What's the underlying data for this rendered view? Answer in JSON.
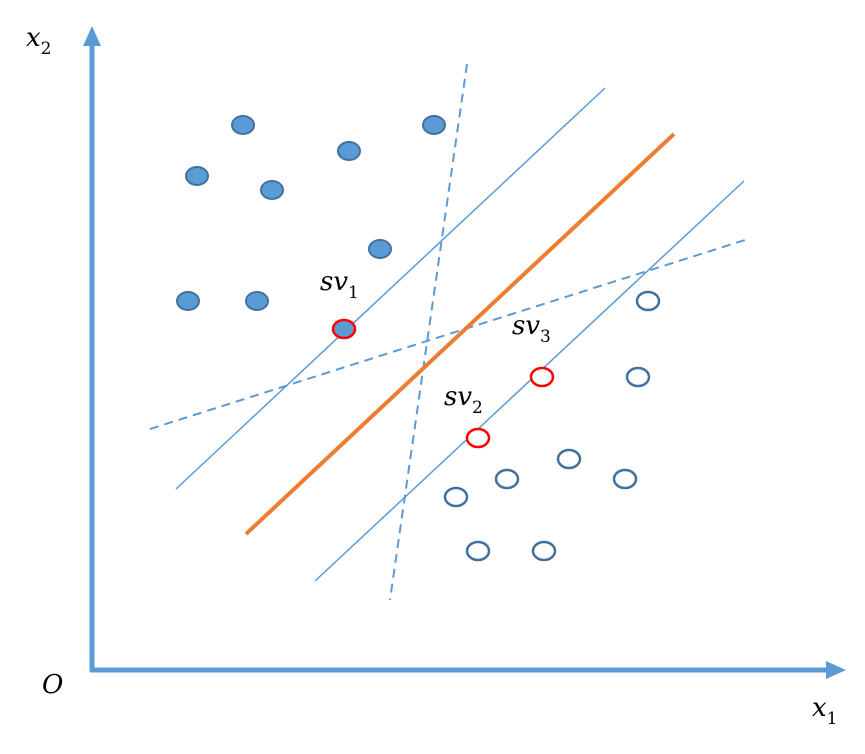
{
  "colors": {
    "axis": "#5b9bd5",
    "class_fill": "#5b9bd5",
    "class_stroke": "#41719c",
    "open_stroke": "#41719c",
    "support_stroke": "#ff0000",
    "hyperplane": "#ed7d31",
    "margin_line": "#5b9bd5"
  },
  "axes": {
    "origin_label": "O",
    "x_label": "x",
    "x_label_sub": "1",
    "y_label": "x",
    "y_label_sub": "2"
  },
  "support_vectors": [
    {
      "label": "sv",
      "sub": "1"
    },
    {
      "label": "sv",
      "sub": "2"
    },
    {
      "label": "sv",
      "sub": "3"
    }
  ]
}
